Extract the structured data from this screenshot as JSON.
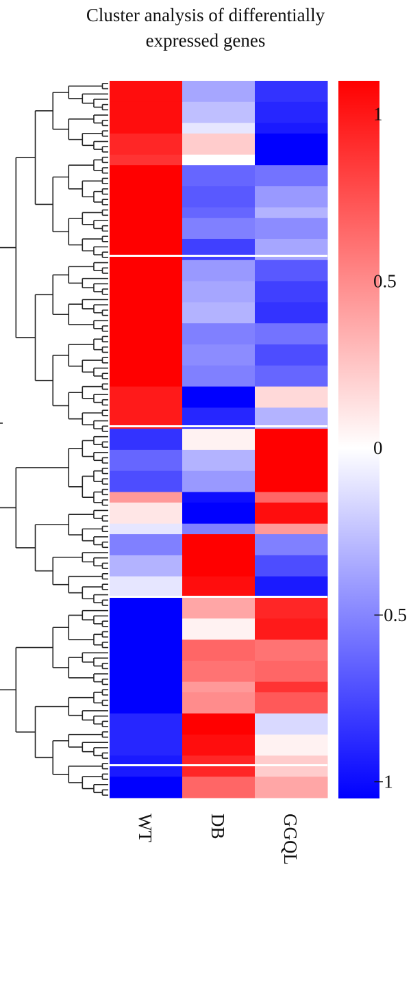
{
  "title_lines": [
    "Cluster analysis of differentially",
    "expressed genes"
  ],
  "chart_data": {
    "type": "heatmap",
    "title": "Cluster analysis of differentially expressed genes",
    "columns": [
      "WT",
      "DB",
      "GGQL"
    ],
    "value_range": [
      -1.05,
      1.1
    ],
    "colorbar": {
      "ticks": [
        1,
        0.5,
        0,
        -0.5,
        -1
      ],
      "tick_labels": [
        "1",
        "0.5",
        "0",
        "−0.5",
        "−1"
      ],
      "colors": {
        "low": "#0000ff",
        "mid": "#ffffff",
        "high": "#ff0000"
      }
    },
    "dendrogram": "rows, left side",
    "row_blocks": [
      {
        "rows": 4,
        "values": [
          0.95,
          -0.35,
          -0.8
        ]
      },
      {
        "rows": 4,
        "values": [
          0.95,
          -0.25,
          -0.85
        ]
      },
      {
        "rows": 2,
        "values": [
          0.95,
          -0.1,
          -0.9
        ]
      },
      {
        "rows": 4,
        "values": [
          0.85,
          0.2,
          -1.0
        ]
      },
      {
        "rows": 2,
        "values": [
          0.8,
          0.0,
          -1.0
        ]
      },
      {
        "rows": 4,
        "values": [
          1.0,
          -0.6,
          -0.55
        ]
      },
      {
        "rows": 4,
        "values": [
          1.0,
          -0.65,
          -0.4
        ]
      },
      {
        "rows": 2,
        "values": [
          1.0,
          -0.6,
          -0.3
        ]
      },
      {
        "rows": 4,
        "values": [
          1.0,
          -0.5,
          -0.45
        ]
      },
      {
        "rows": 4,
        "values": [
          1.0,
          -0.75,
          -0.35
        ]
      },
      {
        "rows": 4,
        "values": [
          1.0,
          -0.4,
          -0.65
        ]
      },
      {
        "rows": 4,
        "values": [
          1.0,
          -0.35,
          -0.75
        ]
      },
      {
        "rows": 4,
        "values": [
          1.0,
          -0.3,
          -0.8
        ]
      },
      {
        "rows": 4,
        "values": [
          1.0,
          -0.5,
          -0.55
        ]
      },
      {
        "rows": 4,
        "values": [
          1.0,
          -0.45,
          -0.7
        ]
      },
      {
        "rows": 4,
        "values": [
          1.0,
          -0.5,
          -0.6
        ]
      },
      {
        "rows": 4,
        "values": [
          0.9,
          -1.0,
          0.15
        ]
      },
      {
        "rows": 4,
        "values": [
          0.9,
          -0.85,
          -0.3
        ]
      },
      {
        "rows": 4,
        "values": [
          -0.8,
          0.05,
          1.0
        ]
      },
      {
        "rows": 4,
        "values": [
          -0.6,
          -0.3,
          1.0
        ]
      },
      {
        "rows": 4,
        "values": [
          -0.7,
          -0.4,
          1.0
        ]
      },
      {
        "rows": 2,
        "values": [
          0.4,
          -0.95,
          0.6
        ]
      },
      {
        "rows": 4,
        "values": [
          0.1,
          -1.0,
          0.95
        ]
      },
      {
        "rows": 2,
        "values": [
          -0.1,
          -0.5,
          0.4
        ]
      },
      {
        "rows": 4,
        "values": [
          -0.5,
          1.0,
          -0.5
        ]
      },
      {
        "rows": 4,
        "values": [
          -0.3,
          1.0,
          -0.7
        ]
      },
      {
        "rows": 4,
        "values": [
          -0.1,
          0.95,
          -0.9
        ]
      },
      {
        "rows": 4,
        "values": [
          -1.0,
          0.35,
          0.85
        ]
      },
      {
        "rows": 4,
        "values": [
          -1.0,
          0.05,
          0.9
        ]
      },
      {
        "rows": 4,
        "values": [
          -1.0,
          0.6,
          0.55
        ]
      },
      {
        "rows": 4,
        "values": [
          -1.0,
          0.55,
          0.6
        ]
      },
      {
        "rows": 2,
        "values": [
          -1.0,
          0.4,
          0.8
        ]
      },
      {
        "rows": 4,
        "values": [
          -1.0,
          0.45,
          0.65
        ]
      },
      {
        "rows": 4,
        "values": [
          -0.85,
          1.0,
          -0.15
        ]
      },
      {
        "rows": 4,
        "values": [
          -0.85,
          0.95,
          0.05
        ]
      },
      {
        "rows": 4,
        "values": [
          -0.9,
          0.85,
          0.2
        ]
      },
      {
        "rows": 4,
        "values": [
          -1.0,
          0.6,
          0.35
        ]
      }
    ]
  }
}
